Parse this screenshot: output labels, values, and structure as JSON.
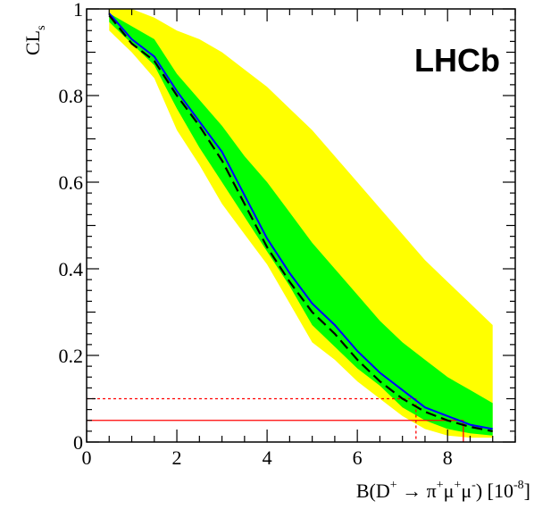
{
  "chart_data": {
    "type": "line",
    "xlabel_parts": {
      "main": "B(D",
      "sup1": "+",
      "arrow": " → π",
      "sup2": "+",
      "mu1": "μ",
      "sup3": "+",
      "mu2": "μ",
      "sup4": "-",
      "unit": ") [10",
      "sup5": "-8",
      "close": "]"
    },
    "ylabel": {
      "main": "CL",
      "sub": "s"
    },
    "logo": "LHCb",
    "xlim": [
      0,
      9.5
    ],
    "ylim": [
      0,
      1
    ],
    "xticks": [
      0,
      2,
      4,
      6,
      8
    ],
    "yticks": [
      0,
      0.2,
      0.4,
      0.6,
      0.8,
      1
    ],
    "ytick_labels": [
      "0",
      "0.2",
      "0.4",
      "0.6",
      "0.8",
      "1"
    ],
    "x": [
      0.5,
      1.0,
      1.5,
      2.0,
      2.5,
      3.0,
      3.5,
      4.0,
      4.5,
      5.0,
      5.5,
      6.0,
      6.5,
      7.0,
      7.5,
      8.0,
      8.5,
      9.0
    ],
    "band_2sigma": {
      "color": "#ffff00",
      "upper": [
        1.0,
        1.0,
        0.98,
        0.95,
        0.93,
        0.9,
        0.86,
        0.82,
        0.77,
        0.72,
        0.66,
        0.6,
        0.54,
        0.48,
        0.42,
        0.37,
        0.32,
        0.27
      ],
      "lower": [
        0.95,
        0.9,
        0.84,
        0.72,
        0.64,
        0.55,
        0.48,
        0.41,
        0.32,
        0.23,
        0.19,
        0.14,
        0.1,
        0.06,
        0.03,
        0.015,
        0.01,
        0.01
      ]
    },
    "band_1sigma": {
      "color": "#00ff00",
      "upper": [
        0.99,
        0.96,
        0.93,
        0.85,
        0.79,
        0.73,
        0.66,
        0.6,
        0.53,
        0.46,
        0.4,
        0.34,
        0.28,
        0.23,
        0.19,
        0.15,
        0.12,
        0.09
      ],
      "lower": [
        0.97,
        0.92,
        0.87,
        0.77,
        0.68,
        0.6,
        0.52,
        0.44,
        0.36,
        0.27,
        0.22,
        0.17,
        0.13,
        0.08,
        0.05,
        0.03,
        0.02,
        0.015
      ]
    },
    "series": [
      {
        "style": "solid",
        "color": "#0000ff",
        "values": [
          0.99,
          0.93,
          0.89,
          0.81,
          0.74,
          0.67,
          0.57,
          0.47,
          0.39,
          0.32,
          0.27,
          0.21,
          0.16,
          0.12,
          0.08,
          0.06,
          0.04,
          0.03
        ]
      },
      {
        "style": "dashed",
        "color": "#000000",
        "values": [
          0.985,
          0.92,
          0.88,
          0.8,
          0.73,
          0.65,
          0.55,
          0.45,
          0.37,
          0.3,
          0.25,
          0.19,
          0.14,
          0.1,
          0.07,
          0.05,
          0.035,
          0.025
        ]
      }
    ],
    "reference_lines": [
      {
        "y": 0.1,
        "x_end": 7.3,
        "style": "dotted",
        "color": "#ff0000"
      },
      {
        "y": 0.05,
        "x_end": 8.35,
        "style": "solid",
        "color": "#ff0000"
      }
    ]
  }
}
